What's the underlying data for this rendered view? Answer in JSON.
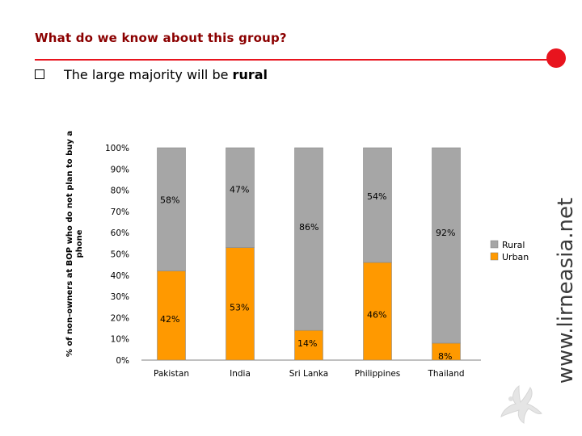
{
  "slide": {
    "title": "What do we know about this group?",
    "bullet": {
      "text": "The large majority will be ",
      "emphasis": "rural"
    },
    "watermark": "www.lirneasia.net"
  },
  "colors": {
    "title": "#8b0000",
    "accent": "#e8141e",
    "rural": "#a6a6a6",
    "urban": "#ff9900",
    "plot_bg": "#ffffff"
  },
  "chart_data": {
    "type": "bar",
    "stacked": true,
    "title": "",
    "ylabel": "% of non-owners at BOP who do not plan to buy a phone",
    "ylim": [
      0,
      100
    ],
    "yticks": [
      "0%",
      "10%",
      "20%",
      "30%",
      "40%",
      "50%",
      "60%",
      "70%",
      "80%",
      "90%",
      "100%"
    ],
    "categories": [
      "Pakistan",
      "India",
      "Sri Lanka",
      "Philippines",
      "Thailand"
    ],
    "series": [
      {
        "name": "Urban",
        "values": [
          42,
          53,
          14,
          46,
          8
        ],
        "labels": [
          "42%",
          "53%",
          "14%",
          "46%",
          "8%"
        ]
      },
      {
        "name": "Rural",
        "values": [
          58,
          47,
          86,
          54,
          92
        ],
        "labels": [
          "58%",
          "47%",
          "86%",
          "54%",
          "92%"
        ]
      }
    ],
    "legend": [
      "Rural",
      "Urban"
    ],
    "legend_position": "right"
  }
}
